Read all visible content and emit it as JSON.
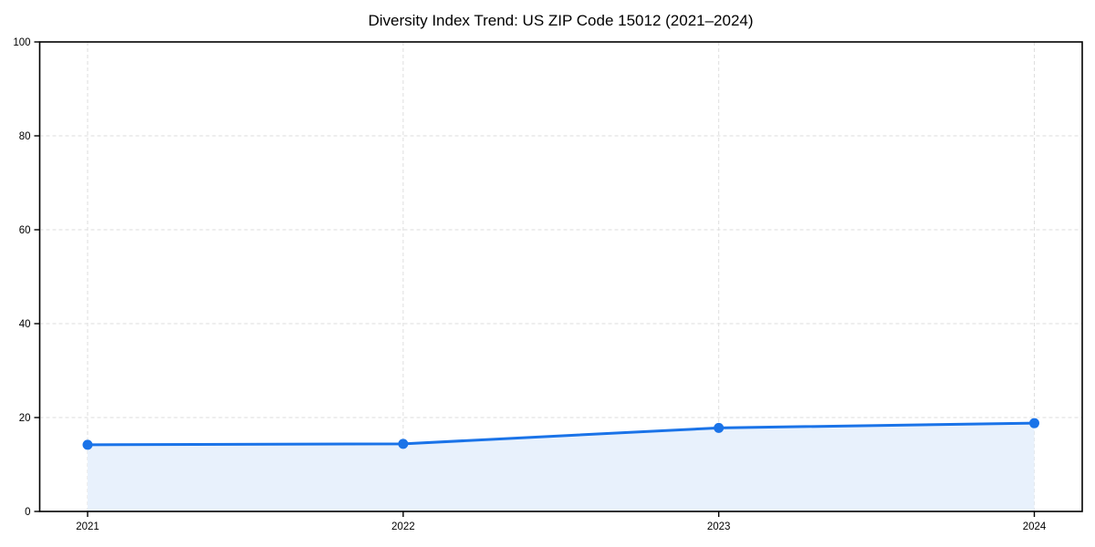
{
  "page": {
    "background": "#ffffff"
  },
  "chart_data": {
    "type": "line",
    "title": "Diversity Index Trend: US ZIP Code 15012 (2021–2024)",
    "categories": [
      "2021",
      "2022",
      "2023",
      "2024"
    ],
    "values": [
      14.2,
      14.4,
      17.8,
      18.8
    ],
    "xlabel": "",
    "ylabel": "",
    "ylim": [
      0,
      100
    ],
    "yticks": [
      0,
      20,
      40,
      60,
      80,
      100
    ],
    "grid": "dashed",
    "legend_position": "none",
    "area_fill": true,
    "colors": {
      "line": "#1a73e8",
      "marker": "#1a73e8",
      "fill": "#e8f1fc",
      "grid": "#dedede",
      "axis": "#000000",
      "tick_label": "#000000"
    }
  }
}
